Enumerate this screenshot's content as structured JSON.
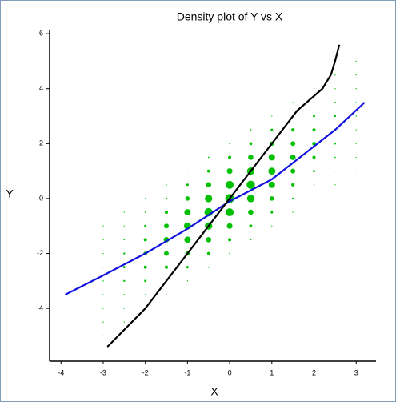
{
  "chart_data": {
    "type": "scatter",
    "title": "Density plot of Y vs X",
    "xlabel": "X",
    "ylabel": "Y",
    "xlim": [
      -4.27,
      3.47
    ],
    "ylim": [
      -5.92,
      6.12
    ],
    "xticks": [
      -4,
      -3,
      -2,
      -1,
      0,
      1,
      2,
      3
    ],
    "yticks": [
      -4,
      -2,
      0,
      2,
      4,
      6
    ],
    "points": {
      "color": "#00c000",
      "x": [
        -3,
        -3,
        -3,
        -3,
        -3,
        -3,
        -3,
        -3,
        -3,
        -2.5,
        -2.5,
        -2.5,
        -2.5,
        -2.5,
        -2.5,
        -2.5,
        -2.5,
        -2.5,
        -2,
        -2,
        -2,
        -2,
        -2,
        -2,
        -2,
        -2,
        -2,
        -1.5,
        -1.5,
        -1.5,
        -1.5,
        -1.5,
        -1.5,
        -1.5,
        -1.5,
        -1.5,
        -1,
        -1,
        -1,
        -1,
        -1,
        -1,
        -1,
        -1,
        -1,
        -0.5,
        -0.5,
        -0.5,
        -0.5,
        -0.5,
        -0.5,
        -0.5,
        -0.5,
        -0.5,
        0,
        0,
        0,
        0,
        0,
        0,
        0,
        0,
        0,
        0.5,
        0.5,
        0.5,
        0.5,
        0.5,
        0.5,
        0.5,
        0.5,
        0.5,
        1,
        1,
        1,
        1,
        1,
        1,
        1,
        1,
        1,
        1.5,
        1.5,
        1.5,
        1.5,
        1.5,
        1.5,
        1.5,
        1.5,
        1.5,
        2,
        2,
        2,
        2,
        2,
        2,
        2,
        2,
        2,
        2.5,
        2.5,
        2.5,
        2.5,
        2.5,
        2.5,
        2.5,
        2.5,
        2.5,
        3,
        3,
        3,
        3,
        3,
        3,
        3,
        3,
        3
      ],
      "y": [
        -5,
        -4.5,
        -4,
        -3.5,
        -3,
        -2.5,
        -2,
        -1.5,
        -1,
        -4.5,
        -4,
        -3.5,
        -3,
        -2.5,
        -2,
        -1.5,
        -1,
        -0.5,
        -4,
        -3.5,
        -3,
        -2.5,
        -2,
        -1.5,
        -1,
        -0.5,
        0,
        -3.5,
        -3,
        -2.5,
        -2,
        -1.5,
        -1,
        -0.5,
        0,
        0.5,
        -3,
        -2.5,
        -2,
        -1.5,
        -1,
        -0.5,
        0,
        0.5,
        1,
        -2.5,
        -2,
        -1.5,
        -1,
        -0.5,
        0,
        0.5,
        1,
        1.5,
        -2,
        -1.5,
        -1,
        -0.5,
        0,
        0.5,
        1,
        1.5,
        2,
        -1.5,
        -1,
        -0.5,
        0,
        0.5,
        1,
        1.5,
        2,
        2.5,
        -1,
        -0.5,
        0,
        0.5,
        1,
        1.5,
        2,
        2.5,
        3,
        -0.5,
        0,
        0.5,
        1,
        1.5,
        2,
        2.5,
        3,
        3.5,
        0,
        0.5,
        1,
        1.5,
        2,
        2.5,
        3,
        3.5,
        4,
        0.5,
        1,
        1.5,
        2,
        2.5,
        3,
        3.5,
        4,
        4.5,
        1,
        1.5,
        2,
        2.5,
        3,
        3.5,
        4,
        4.5,
        5
      ],
      "sizes": [
        0.6,
        0.6,
        0.6,
        0.6,
        0.7,
        0.6,
        0.6,
        0.6,
        0.6,
        0.6,
        0.6,
        0.8,
        1.1,
        1.3,
        1.1,
        0.8,
        0.6,
        0.6,
        0.6,
        0.7,
        1.3,
        1.8,
        2.1,
        1.8,
        1.3,
        0.7,
        0.6,
        0.6,
        1.1,
        1.9,
        2.7,
        3.1,
        2.7,
        1.9,
        1.1,
        0.6,
        0.6,
        1.4,
        2.5,
        3.6,
        4.0,
        3.6,
        2.5,
        1.4,
        0.6,
        0.8,
        1.7,
        3.0,
        4.2,
        4.7,
        4.2,
        3.0,
        1.7,
        0.8,
        0.8,
        1.8,
        3.2,
        4.5,
        5.0,
        4.5,
        3.2,
        1.8,
        0.8,
        0.8,
        1.7,
        3.0,
        4.2,
        4.7,
        4.2,
        3.0,
        1.7,
        0.8,
        0.6,
        1.4,
        2.5,
        3.6,
        4.0,
        3.6,
        2.5,
        1.4,
        0.6,
        0.6,
        1.1,
        1.9,
        2.7,
        3.1,
        2.7,
        1.9,
        1.1,
        0.6,
        0.6,
        0.7,
        1.3,
        1.8,
        2.1,
        1.8,
        1.3,
        0.7,
        0.6,
        0.6,
        0.6,
        0.8,
        1.1,
        1.3,
        1.1,
        0.8,
        0.6,
        0.6,
        0.6,
        0.6,
        0.6,
        0.6,
        0.7,
        0.6,
        0.6,
        0.6,
        0.6
      ]
    },
    "lines": [
      {
        "color": "#1010e0",
        "x": [
          -3.9,
          -3,
          -2,
          -1,
          0,
          1,
          2,
          2.5,
          3.2
        ],
        "y": [
          -3.5,
          -2.8,
          -2.0,
          -1.1,
          -0.1,
          0.7,
          1.9,
          2.5,
          3.5
        ]
      },
      {
        "color": "#000000",
        "x": [
          -2.9,
          -2,
          -1.5,
          -1,
          -0.5,
          0,
          0.5,
          1,
          1.6,
          2.2,
          2.4,
          2.5,
          2.6
        ],
        "y": [
          -5.4,
          -4.0,
          -3.0,
          -2.0,
          -1.0,
          0,
          1.0,
          2.0,
          3.2,
          4.0,
          4.5,
          5.0,
          5.6
        ]
      }
    ]
  }
}
